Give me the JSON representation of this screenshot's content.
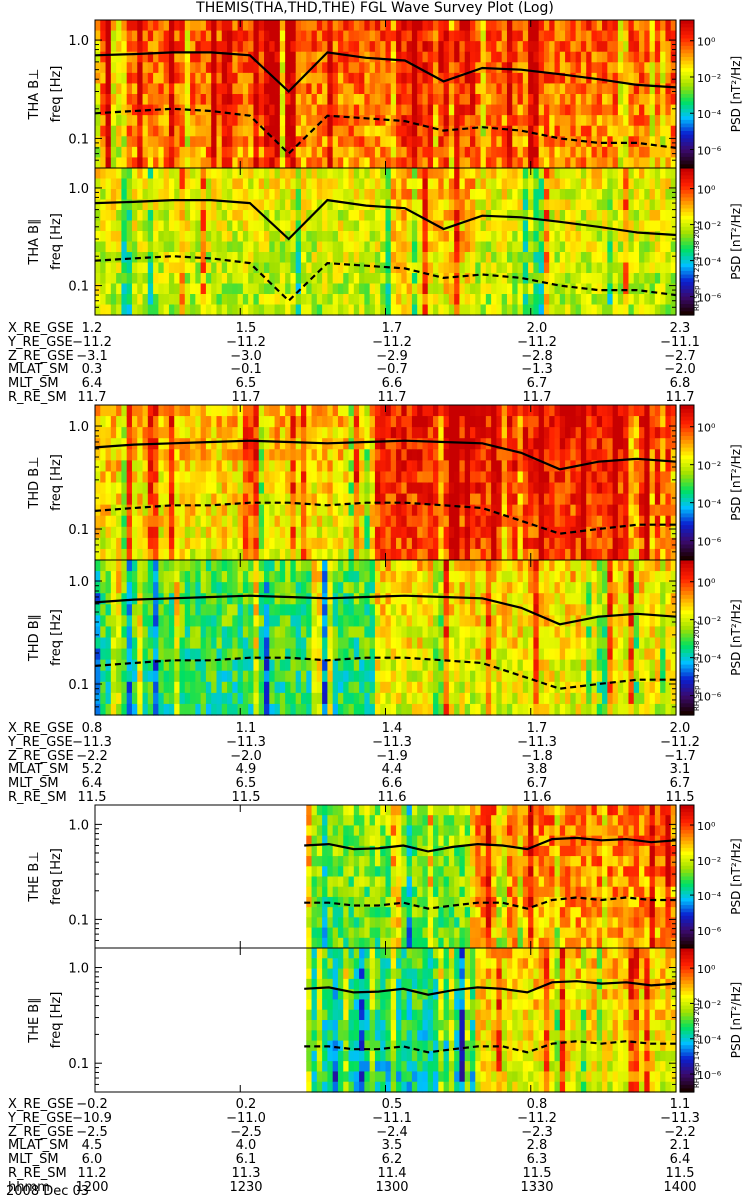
{
  "title": "THEMIS(THA,THD,THE) FGL Wave Survey Plot (Log)",
  "colorbar": {
    "label": "PSD [nT²/Hz]",
    "ticks": [
      "10⁰",
      "10⁻²",
      "10⁻⁴",
      "10⁻⁶"
    ],
    "colors": [
      "#1a0000",
      "#3a0a6e",
      "#0a1fd0",
      "#00c0ff",
      "#00e060",
      "#a0e000",
      "#ffff00",
      "#ff9000",
      "#ff2000",
      "#c80000"
    ]
  },
  "stamp": "RH Sep 14 23:41:38 2012",
  "date": "2008 Dec 03",
  "chart_data": [
    {
      "type": "heatmap",
      "panel": "THA B⊥",
      "ylabel": "freq [Hz]",
      "yticks": [
        "1.0",
        "0.1"
      ],
      "yscale": "log",
      "ylim": [
        0.05,
        1.6
      ],
      "solid_line": [
        0.7,
        0.72,
        0.75,
        0.75,
        0.7,
        0.3,
        0.75,
        0.66,
        0.62,
        0.38,
        0.52,
        0.5,
        0.45,
        0.4,
        0.35,
        0.33
      ],
      "dashed_line": [
        0.18,
        0.19,
        0.2,
        0.19,
        0.17,
        0.07,
        0.17,
        0.16,
        0.15,
        0.12,
        0.13,
        0.12,
        0.1,
        0.09,
        0.09,
        0.08
      ]
    },
    {
      "type": "heatmap",
      "panel": "THA B∥",
      "ylabel": "freq [Hz]",
      "yticks": [
        "1.0",
        "0.1"
      ],
      "yscale": "log",
      "ylim": [
        0.05,
        1.6
      ],
      "solid_line": [
        0.7,
        0.72,
        0.75,
        0.75,
        0.7,
        0.3,
        0.75,
        0.66,
        0.62,
        0.38,
        0.52,
        0.5,
        0.45,
        0.4,
        0.35,
        0.33
      ],
      "dashed_line": [
        0.18,
        0.19,
        0.2,
        0.19,
        0.17,
        0.07,
        0.17,
        0.16,
        0.15,
        0.12,
        0.13,
        0.12,
        0.1,
        0.09,
        0.09,
        0.08
      ]
    },
    {
      "type": "heatmap",
      "panel": "THD B⊥",
      "ylabel": "freq [Hz]",
      "yticks": [
        "1.0",
        "0.1"
      ],
      "yscale": "log",
      "ylim": [
        0.05,
        1.6
      ],
      "solid_line": [
        0.62,
        0.66,
        0.68,
        0.7,
        0.72,
        0.7,
        0.68,
        0.7,
        0.72,
        0.7,
        0.68,
        0.55,
        0.38,
        0.45,
        0.48,
        0.45
      ],
      "dashed_line": [
        0.15,
        0.16,
        0.17,
        0.17,
        0.18,
        0.18,
        0.17,
        0.18,
        0.18,
        0.17,
        0.16,
        0.12,
        0.09,
        0.1,
        0.11,
        0.11
      ]
    },
    {
      "type": "heatmap",
      "panel": "THD B∥",
      "ylabel": "freq [Hz]",
      "yticks": [
        "1.0",
        "0.1"
      ],
      "yscale": "log",
      "ylim": [
        0.05,
        1.6
      ],
      "solid_line": [
        0.62,
        0.66,
        0.68,
        0.7,
        0.72,
        0.7,
        0.68,
        0.7,
        0.72,
        0.7,
        0.68,
        0.55,
        0.38,
        0.45,
        0.48,
        0.45
      ],
      "dashed_line": [
        0.15,
        0.16,
        0.17,
        0.17,
        0.18,
        0.18,
        0.17,
        0.18,
        0.18,
        0.17,
        0.16,
        0.12,
        0.09,
        0.1,
        0.11,
        0.11
      ]
    },
    {
      "type": "heatmap",
      "panel": "THE B⊥",
      "ylabel": "freq [Hz]",
      "yticks": [
        "1.0",
        "0.1"
      ],
      "yscale": "log",
      "ylim": [
        0.05,
        1.6
      ],
      "data_start": 0.36,
      "solid_line": [
        0.6,
        0.62,
        0.55,
        0.56,
        0.6,
        0.52,
        0.58,
        0.62,
        0.6,
        0.55,
        0.7,
        0.72,
        0.68,
        0.7,
        0.65,
        0.68
      ],
      "dashed_line": [
        0.15,
        0.15,
        0.14,
        0.14,
        0.15,
        0.13,
        0.14,
        0.15,
        0.15,
        0.13,
        0.16,
        0.17,
        0.16,
        0.17,
        0.16,
        0.16
      ]
    },
    {
      "type": "heatmap",
      "panel": "THE B∥",
      "ylabel": "freq [Hz]",
      "yticks": [
        "1.0",
        "0.1"
      ],
      "yscale": "log",
      "ylim": [
        0.05,
        1.6
      ],
      "data_start": 0.36,
      "solid_line": [
        0.6,
        0.62,
        0.55,
        0.56,
        0.6,
        0.52,
        0.58,
        0.62,
        0.6,
        0.55,
        0.7,
        0.72,
        0.68,
        0.7,
        0.65,
        0.68
      ],
      "dashed_line": [
        0.15,
        0.15,
        0.14,
        0.14,
        0.15,
        0.13,
        0.14,
        0.15,
        0.15,
        0.13,
        0.16,
        0.17,
        0.16,
        0.17,
        0.16,
        0.16
      ]
    }
  ],
  "tables": [
    {
      "rows": [
        {
          "label": "X_RE_GSE",
          "values": [
            "1.2",
            "1.5",
            "1.7",
            "2.0",
            "2.3"
          ]
        },
        {
          "label": "Y_RE_GSE",
          "values": [
            "−11.2",
            "−11.2",
            "−11.2",
            "−11.2",
            "−11.1"
          ]
        },
        {
          "label": "Z_RE_GSE",
          "values": [
            "−3.1",
            "−3.0",
            "−2.9",
            "−2.8",
            "−2.7"
          ]
        },
        {
          "label": "MLAT_SM",
          "values": [
            "0.3",
            "−0.1",
            "−0.7",
            "−1.3",
            "−2.0"
          ]
        },
        {
          "label": "MLT_SM",
          "values": [
            "6.4",
            "6.5",
            "6.6",
            "6.7",
            "6.8"
          ]
        },
        {
          "label": "R_RE_SM",
          "values": [
            "11.7",
            "11.7",
            "11.7",
            "11.7",
            "11.7"
          ]
        }
      ]
    },
    {
      "rows": [
        {
          "label": "X_RE_GSE",
          "values": [
            "0.8",
            "1.1",
            "1.4",
            "1.7",
            "2.0"
          ]
        },
        {
          "label": "Y_RE_GSE",
          "values": [
            "−11.3",
            "−11.3",
            "−11.3",
            "−11.3",
            "−11.2"
          ]
        },
        {
          "label": "Z_RE_GSE",
          "values": [
            "−2.2",
            "−2.0",
            "−1.9",
            "−1.8",
            "−1.7"
          ]
        },
        {
          "label": "MLAT_SM",
          "values": [
            "5.2",
            "4.9",
            "4.4",
            "3.8",
            "3.1"
          ]
        },
        {
          "label": "MLT_SM",
          "values": [
            "6.4",
            "6.5",
            "6.6",
            "6.7",
            "6.7"
          ]
        },
        {
          "label": "R_RE_SM",
          "values": [
            "11.5",
            "11.5",
            "11.6",
            "11.6",
            "11.5"
          ]
        }
      ]
    },
    {
      "rows": [
        {
          "label": "X_RE_GSE",
          "values": [
            "−0.2",
            "0.2",
            "0.5",
            "0.8",
            "1.1"
          ]
        },
        {
          "label": "Y_RE_GSE",
          "values": [
            "−10.9",
            "−11.0",
            "−11.1",
            "−11.2",
            "−11.3"
          ]
        },
        {
          "label": "Z_RE_GSE",
          "values": [
            "−2.5",
            "−2.5",
            "−2.4",
            "−2.3",
            "−2.2"
          ]
        },
        {
          "label": "MLAT_SM",
          "values": [
            "4.5",
            "4.0",
            "3.5",
            "2.8",
            "2.1"
          ]
        },
        {
          "label": "MLT_SM",
          "values": [
            "6.0",
            "6.1",
            "6.2",
            "6.3",
            "6.4"
          ]
        },
        {
          "label": "R_RE_SM",
          "values": [
            "11.2",
            "11.3",
            "11.4",
            "11.5",
            "11.5"
          ]
        },
        {
          "label": "hhmm",
          "values": [
            "1200",
            "1230",
            "1300",
            "1330",
            "1400"
          ]
        }
      ]
    }
  ]
}
